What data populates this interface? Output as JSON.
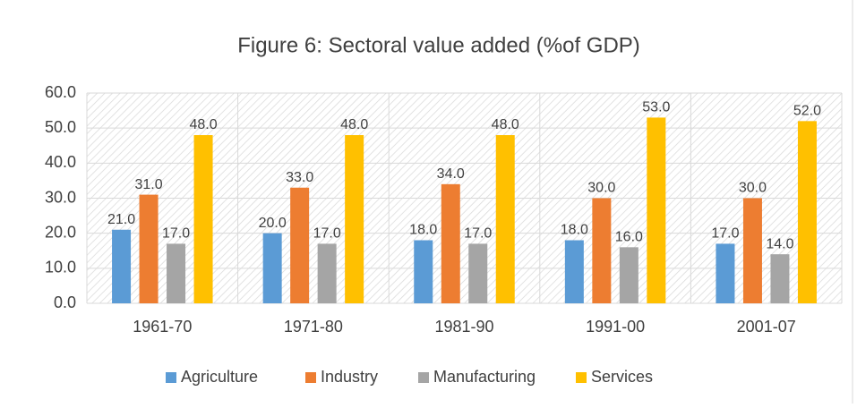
{
  "chart_data": {
    "type": "bar",
    "title": "Figure 6: Sectoral value added (%of GDP)",
    "categories": [
      "1961-70",
      "1971-80",
      "1981-90",
      "1991-00",
      "2001-07"
    ],
    "series": [
      {
        "name": "Agriculture",
        "color": "#5b9bd5",
        "values": [
          21,
          20,
          18,
          18,
          17
        ],
        "value_labels": [
          "21.0",
          "20.0",
          "18.0",
          "18.0",
          "17.0"
        ]
      },
      {
        "name": "Industry",
        "color": "#ed7d31",
        "values": [
          31,
          33,
          34,
          30,
          30
        ],
        "value_labels": [
          "31.0",
          "33.0",
          "34.0",
          "30.0",
          "30.0"
        ]
      },
      {
        "name": "Manufacturing",
        "color": "#a5a5a5",
        "values": [
          17,
          17,
          17,
          16,
          14
        ],
        "value_labels": [
          "17.0",
          "17.0",
          "17.0",
          "16.0",
          "14.0"
        ]
      },
      {
        "name": "Services",
        "color": "#ffc000",
        "values": [
          48,
          48,
          48,
          53,
          52
        ],
        "value_labels": [
          "48.0",
          "48.0",
          "48.0",
          "53.0",
          "52.0"
        ]
      }
    ],
    "ylim": [
      0,
      60
    ],
    "yticks": [
      {
        "value": 0,
        "label": "0.0"
      },
      {
        "value": 10,
        "label": "10.0"
      },
      {
        "value": 20,
        "label": "20.0"
      },
      {
        "value": 30,
        "label": "30.0"
      },
      {
        "value": 40,
        "label": "40.0"
      },
      {
        "value": 50,
        "label": "50.0"
      },
      {
        "value": 60,
        "label": "60.0"
      }
    ],
    "grid": true,
    "legend": "bottom"
  }
}
